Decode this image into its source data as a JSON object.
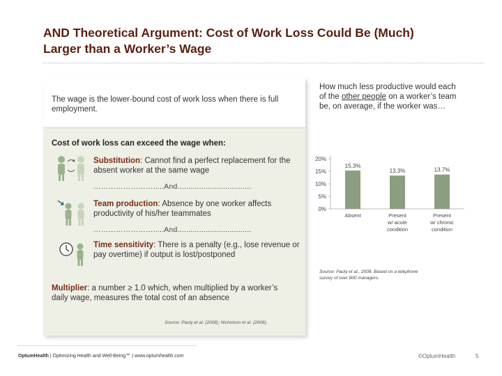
{
  "slide": {
    "title": "AND Theoretical Argument: Cost of Work Loss Could Be (Much) Larger than a Worker’s Wage",
    "wage_text": "The wage is the lower-bound cost of work loss when there is full employment.",
    "heading": "Cost of work loss can exceed the wage when:",
    "items": [
      {
        "term": "Substitution",
        "text": ": Cannot find a perfect replacement for the absent worker at the same wage"
      },
      {
        "term": "Team production",
        "text": ": Absence by one worker affects productivity of his/her teammates"
      },
      {
        "term": "Time sensitivity",
        "text": ": There is a penalty (e.g., lose revenue or pay overtime) if output is lost/postponed"
      }
    ],
    "dots_and": "…………………….....And..................................",
    "multiplier": {
      "term": "Multiplier",
      "text": ": a number ≥ 1.0 which, when multiplied by a worker’s daily wage, measures the total cost of an absence"
    },
    "source_left": "Source: Pauly et al. (2008); Nicholson et al. (2006).",
    "question_before": "How much less productive would each of the ",
    "question_underlined": "other people",
    "question_after": " on a worker’s team be, on average, if the worker was…",
    "source_right": "Source: Pauly et al., 2008. Based on a telephone survey of over 800 managers.",
    "footer_bold": "OptumHealth",
    "footer_text": " | Optimizing Health and Well-Being℠ | www.optumhealth.com",
    "brand": "©OptumHealth",
    "page_number": "5"
  },
  "chart_data": {
    "type": "bar",
    "categories": [
      "Absent",
      "Present w/ acute condition",
      "Present w/ chronic condition"
    ],
    "category_label_lines": [
      [
        "Absent"
      ],
      [
        "Present",
        "w/ acute",
        "condition"
      ],
      [
        "Present",
        "w/ chronic",
        "condition"
      ]
    ],
    "values": [
      15.3,
      13.3,
      13.7
    ],
    "data_labels": [
      "15.3%",
      "13.3%",
      "13.7%"
    ],
    "y_ticks": [
      "20%",
      "15%",
      "10%",
      "5%",
      "0%"
    ],
    "y_tick_values": [
      20,
      15,
      10,
      5,
      0
    ],
    "ylim": [
      0,
      20
    ],
    "bar_color": "#8c9e7f",
    "grid": false,
    "legend": "none"
  }
}
